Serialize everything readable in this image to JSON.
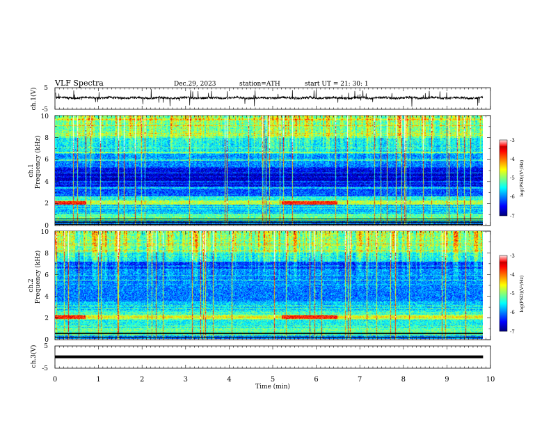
{
  "header": {
    "title": "VLF  Spectra",
    "date": "Dec.29, 2023",
    "station": "station=ATH",
    "start": "start  UT  =    21: 30: 1"
  },
  "chart_data": {
    "type": "heatmap",
    "panels": [
      {
        "id": "ch1-waveform",
        "type": "line",
        "ylabel": "ch.1(V)",
        "ylim": [
          -5,
          5
        ],
        "y_ticks": [
          "5",
          "-5"
        ],
        "baseline": 0.3,
        "noise_amplitude": 0.55,
        "spike_amplitude": 2.6
      },
      {
        "id": "ch1-spectrogram",
        "type": "heatmap",
        "ylabel_top": "ch.1",
        "ylabel_bottom": "Frequency  (kHz)",
        "ylim": [
          0,
          10
        ],
        "y_ticks": [
          "0",
          "2",
          "4",
          "6",
          "8",
          "10"
        ],
        "colorbar": {
          "label": "log(PSD)(V²/Hz)",
          "range": [
            -7,
            -3
          ],
          "ticks": [
            "-3",
            "-4",
            "-5",
            "-6",
            "-7"
          ]
        }
      },
      {
        "id": "ch2-spectrogram",
        "type": "heatmap",
        "ylabel_top": "ch.2",
        "ylabel_bottom": "Frequency  (kHz)",
        "ylim": [
          0,
          10
        ],
        "y_ticks": [
          "0",
          "2",
          "4",
          "6",
          "8",
          "10"
        ],
        "colorbar": {
          "label": "log(PSD)(V²/Hz)",
          "range": [
            -7,
            -3
          ],
          "ticks": [
            "-3",
            "-4",
            "-5",
            "-6",
            "-7"
          ]
        }
      },
      {
        "id": "ch3-waveform",
        "type": "line",
        "ylabel": "ch.3(V)",
        "ylim": [
          -5,
          5
        ],
        "y_ticks": [
          "5",
          "-5"
        ],
        "baseline": 0.1
      }
    ],
    "x_axis": {
      "label": "Time  (min)",
      "range": [
        0,
        10
      ],
      "ticks": [
        "0",
        "1",
        "2",
        "3",
        "4",
        "5",
        "6",
        "7",
        "8",
        "9",
        "10"
      ],
      "data_end": 9.83
    }
  }
}
